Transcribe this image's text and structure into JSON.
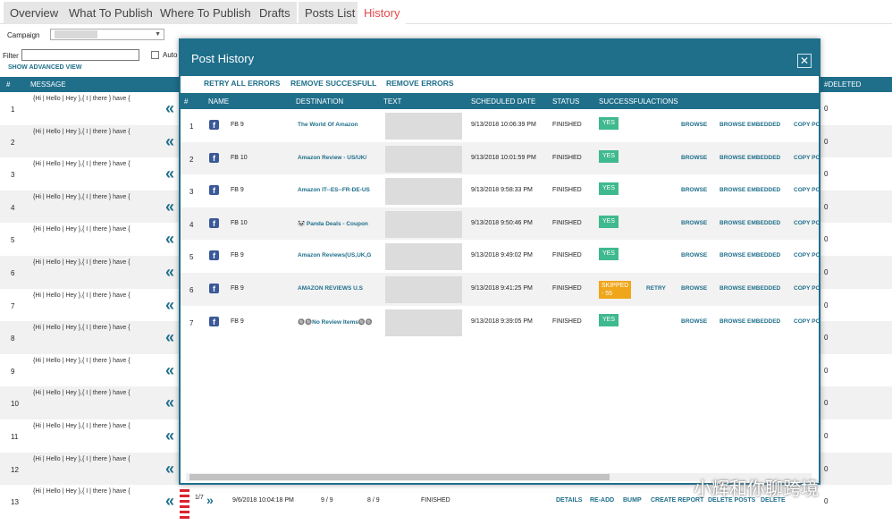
{
  "tabs": [
    "Overview",
    "What To Publish",
    "Where To Publish",
    "Drafts",
    "Posts List",
    "History"
  ],
  "filters": {
    "campaign_label": "Campaign",
    "filter_label": "Filter",
    "auto_label": "Auto",
    "show_advanced": "SHOW ADVANCED VIEW"
  },
  "background_table": {
    "headers": {
      "num": "#",
      "message": "MESSAGE",
      "deleted": "#DELETED"
    },
    "message_text": "{Hi | Hello | Hey },{ I | there } have {",
    "deleted_value": "0",
    "rows": [
      "1",
      "2",
      "3",
      "4",
      "5",
      "6",
      "7",
      "8",
      "9",
      "10",
      "11",
      "12",
      "13"
    ],
    "row13": {
      "pager": "1/7",
      "date": "9/6/2018 10:04:18 PM",
      "count1": "9 / 9",
      "count2": "8 / 9",
      "status": "FINISHED",
      "actions": [
        "DETAILS",
        "RE-ADD",
        "BUMP",
        "CREATE REPORT",
        "DELETE POSTS",
        "DELETE"
      ]
    }
  },
  "modal": {
    "title": "Post History",
    "close": "✕",
    "bulk_actions": [
      "RETRY ALL ERRORS",
      "REMOVE SUCCESFULL",
      "REMOVE ERRORS"
    ],
    "headers": {
      "num": "#",
      "name": "NAME",
      "destination": "DESTINATION",
      "text": "TEXT",
      "scheduled": "SCHEDULED DATE",
      "status": "STATUS",
      "successful": "SUCCESSFUL",
      "actions": "ACTIONS"
    },
    "rows": [
      {
        "n": "1",
        "name": "FB 9",
        "dest": "The World Of Amazon",
        "date": "9/13/2018 10:06:39 PM",
        "status": "FINISHED",
        "success": "YES"
      },
      {
        "n": "2",
        "name": "FB 10",
        "dest": "Amazon Review - US/UK/",
        "date": "9/13/2018 10:01:59 PM",
        "status": "FINISHED",
        "success": "YES"
      },
      {
        "n": "3",
        "name": "FB 9",
        "dest": "Amazon IT--ES--FR-DE-US",
        "date": "9/13/2018 9:58:33 PM",
        "status": "FINISHED",
        "success": "YES"
      },
      {
        "n": "4",
        "name": "FB 10",
        "dest": "🐼 Panda Deals - Coupon",
        "date": "9/13/2018 9:50:46 PM",
        "status": "FINISHED",
        "success": "YES"
      },
      {
        "n": "5",
        "name": "FB 9",
        "dest": "Amazon Reviews(US,UK,G",
        "date": "9/13/2018 9:49:02 PM",
        "status": "FINISHED",
        "success": "YES"
      },
      {
        "n": "6",
        "name": "FB 9",
        "dest": "AMAZON REVIEWS U.S",
        "date": "9/13/2018 9:41:25 PM",
        "status": "FINISHED",
        "success": "SKIPPED - 55",
        "retry": "RETRY"
      },
      {
        "n": "7",
        "name": "FB 9",
        "dest": "🔘🔘No Review Items🔘🔘",
        "date": "9/13/2018 9:39:05 PM",
        "status": "FINISHED",
        "success": "YES"
      }
    ],
    "row_actions": [
      "BROWSE",
      "BROWSE EMBEDDED",
      "COPY PO"
    ]
  },
  "watermark": "小辉和你聊跨境",
  "colors": {
    "teal": "#1f6f8b",
    "success": "#3fb98e",
    "skipped": "#f0a61a",
    "active_tab": "#e5484d"
  }
}
